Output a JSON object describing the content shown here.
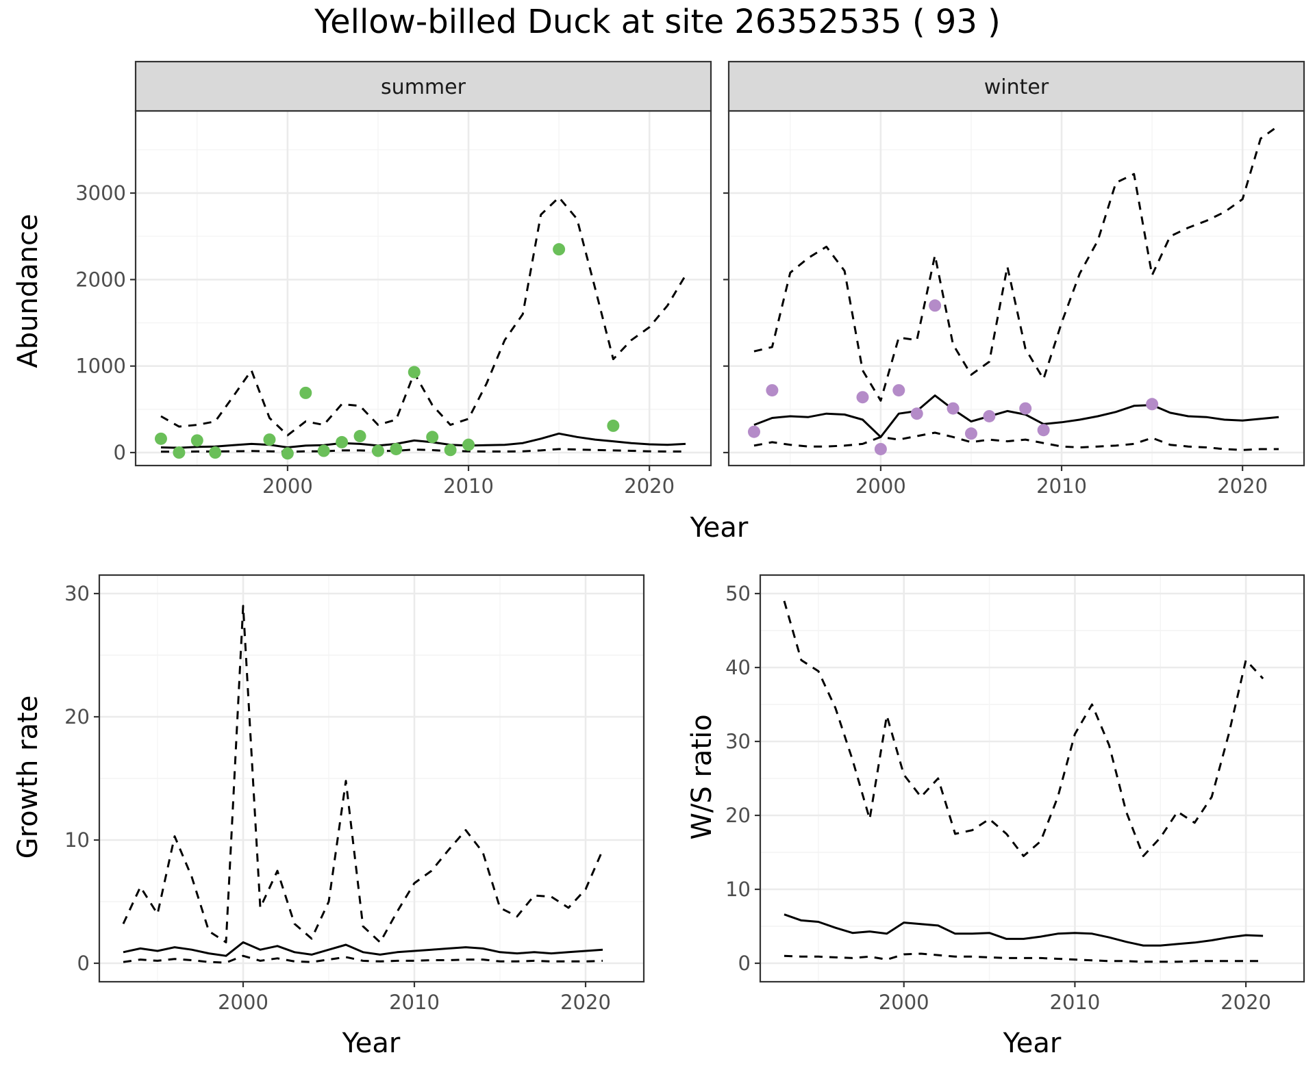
{
  "title": "Yellow-billed Duck at site 26352535 ( 93 )",
  "colors": {
    "summer_points": "#6abf59",
    "winter_points": "#b48bc8",
    "lines": "#000000",
    "strip_fill": "#d9d9d9",
    "grid_major": "#ebebeb",
    "grid_minor": "#f4f4f4"
  },
  "chart_data": [
    {
      "type": "line",
      "panel": "summer",
      "strip_label": "summer",
      "xlabel": "Year",
      "ylabel": "Abundance",
      "xlim": [
        1991.6,
        2023.4
      ],
      "ylim": [
        -150,
        3950
      ],
      "xticks": [
        2000,
        2010,
        2020
      ],
      "yticks": [
        0,
        1000,
        2000,
        3000
      ],
      "x": [
        1993,
        1994,
        1995,
        1996,
        1997,
        1998,
        1999,
        2000,
        2001,
        2002,
        2003,
        2004,
        2005,
        2006,
        2007,
        2008,
        2009,
        2010,
        2011,
        2012,
        2013,
        2014,
        2015,
        2016,
        2017,
        2018,
        2019,
        2020,
        2021,
        2022
      ],
      "series": [
        {
          "style": "solid",
          "values": [
            60,
            55,
            65,
            70,
            85,
            100,
            90,
            60,
            80,
            85,
            110,
            100,
            80,
            100,
            140,
            120,
            90,
            80,
            85,
            90,
            110,
            160,
            220,
            180,
            150,
            130,
            110,
            95,
            90,
            100
          ]
        },
        {
          "style": "dashed",
          "values": [
            420,
            300,
            320,
            360,
            650,
            950,
            400,
            200,
            360,
            320,
            560,
            540,
            320,
            380,
            920,
            550,
            320,
            390,
            800,
            1300,
            1600,
            2750,
            2950,
            2700,
            1900,
            1080,
            1300,
            1450,
            1700,
            2050
          ]
        },
        {
          "style": "dashed",
          "values": [
            10,
            10,
            12,
            12,
            15,
            18,
            15,
            8,
            15,
            15,
            25,
            25,
            18,
            20,
            35,
            28,
            18,
            15,
            12,
            12,
            15,
            25,
            40,
            35,
            30,
            25,
            20,
            15,
            12,
            12
          ]
        }
      ],
      "points": {
        "color": "#6abf59",
        "x": [
          1993,
          1994,
          1995,
          1996,
          1999,
          2000,
          2001,
          2002,
          2003,
          2004,
          2005,
          2006,
          2007,
          2008,
          2009,
          2010,
          2015,
          2018
        ],
        "y": [
          160,
          0,
          140,
          0,
          150,
          -10,
          690,
          20,
          120,
          190,
          20,
          40,
          930,
          180,
          30,
          90,
          2350,
          310
        ]
      }
    },
    {
      "type": "line",
      "panel": "winter",
      "strip_label": "winter",
      "xlabel": "Year",
      "ylabel": "",
      "xlim": [
        1991.6,
        2023.4
      ],
      "ylim": [
        -150,
        3950
      ],
      "xticks": [
        2000,
        2010,
        2020
      ],
      "yticks": [
        0,
        1000,
        2000,
        3000
      ],
      "x": [
        1993,
        1994,
        1995,
        1996,
        1997,
        1998,
        1999,
        2000,
        2001,
        2002,
        2003,
        2004,
        2005,
        2006,
        2007,
        2008,
        2009,
        2010,
        2011,
        2012,
        2013,
        2014,
        2015,
        2016,
        2017,
        2018,
        2019,
        2020,
        2021,
        2022
      ],
      "series": [
        {
          "style": "solid",
          "values": [
            320,
            400,
            420,
            410,
            450,
            440,
            380,
            180,
            450,
            480,
            660,
            500,
            360,
            420,
            480,
            440,
            330,
            350,
            380,
            420,
            470,
            540,
            550,
            460,
            420,
            410,
            380,
            370,
            390,
            410
          ]
        },
        {
          "style": "dashed",
          "values": [
            1170,
            1220,
            2080,
            2250,
            2380,
            2100,
            950,
            600,
            1330,
            1300,
            2280,
            1250,
            900,
            1050,
            2150,
            1200,
            850,
            1500,
            2070,
            2450,
            3120,
            3220,
            2050,
            2500,
            2600,
            2680,
            2780,
            2930,
            3630,
            3780
          ]
        },
        {
          "style": "dashed",
          "values": [
            80,
            120,
            90,
            70,
            70,
            80,
            100,
            180,
            150,
            190,
            230,
            180,
            120,
            150,
            130,
            150,
            110,
            70,
            60,
            70,
            80,
            100,
            170,
            90,
            70,
            60,
            40,
            30,
            40,
            40
          ]
        }
      ],
      "points": {
        "color": "#b48bc8",
        "x": [
          1993,
          1994,
          1999,
          2000,
          2001,
          2002,
          2003,
          2004,
          2005,
          2006,
          2008,
          2009,
          2015
        ],
        "y": [
          240,
          720,
          640,
          40,
          720,
          450,
          1700,
          510,
          220,
          420,
          510,
          260,
          560
        ]
      }
    },
    {
      "type": "line",
      "panel": "growth",
      "strip_label": "",
      "xlabel": "Year",
      "ylabel": "Growth rate",
      "xlim": [
        1991.6,
        2023.4
      ],
      "ylim": [
        -1.5,
        31.5
      ],
      "xticks": [
        2000,
        2010,
        2020
      ],
      "yticks": [
        0,
        10,
        20,
        30
      ],
      "x": [
        1993,
        1994,
        1995,
        1996,
        1997,
        1998,
        1999,
        2000,
        2001,
        2002,
        2003,
        2004,
        2005,
        2006,
        2007,
        2008,
        2009,
        2010,
        2011,
        2012,
        2013,
        2014,
        2015,
        2016,
        2017,
        2018,
        2019,
        2020,
        2021
      ],
      "series": [
        {
          "style": "solid",
          "values": [
            0.9,
            1.2,
            1.0,
            1.3,
            1.1,
            0.8,
            0.6,
            1.7,
            1.1,
            1.4,
            0.9,
            0.7,
            1.1,
            1.5,
            0.9,
            0.7,
            0.9,
            1.0,
            1.1,
            1.2,
            1.3,
            1.2,
            0.9,
            0.8,
            0.9,
            0.8,
            0.9,
            1.0,
            1.1
          ]
        },
        {
          "style": "dashed",
          "values": [
            3.2,
            6.2,
            4.0,
            10.3,
            7.0,
            2.6,
            1.7,
            29.0,
            4.5,
            7.5,
            3.2,
            2.0,
            5.0,
            14.8,
            3.0,
            1.7,
            4.2,
            6.5,
            7.5,
            9.2,
            10.8,
            9.0,
            4.5,
            3.8,
            5.5,
            5.4,
            4.5,
            6.0,
            9.2
          ]
        },
        {
          "style": "dashed",
          "values": [
            0.1,
            0.3,
            0.2,
            0.35,
            0.25,
            0.1,
            0.05,
            0.6,
            0.2,
            0.4,
            0.15,
            0.1,
            0.3,
            0.5,
            0.2,
            0.15,
            0.2,
            0.2,
            0.25,
            0.25,
            0.3,
            0.3,
            0.15,
            0.15,
            0.2,
            0.15,
            0.15,
            0.15,
            0.2
          ]
        }
      ]
    },
    {
      "type": "line",
      "panel": "ratio",
      "strip_label": "",
      "xlabel": "Year",
      "ylabel": "W/S ratio",
      "xlim": [
        1991.6,
        2023.4
      ],
      "ylim": [
        -2.5,
        52.5
      ],
      "xticks": [
        2000,
        2010,
        2020
      ],
      "yticks": [
        0,
        10,
        20,
        30,
        40,
        50
      ],
      "x": [
        1993,
        1994,
        1995,
        1996,
        1997,
        1998,
        1999,
        2000,
        2001,
        2002,
        2003,
        2004,
        2005,
        2006,
        2007,
        2008,
        2009,
        2010,
        2011,
        2012,
        2013,
        2014,
        2015,
        2016,
        2017,
        2018,
        2019,
        2020,
        2021
      ],
      "series": [
        {
          "style": "solid",
          "values": [
            6.6,
            5.8,
            5.6,
            4.8,
            4.1,
            4.3,
            4.0,
            5.5,
            5.3,
            5.1,
            4.0,
            4.0,
            4.1,
            3.3,
            3.3,
            3.6,
            4.0,
            4.1,
            4.0,
            3.5,
            2.9,
            2.4,
            2.4,
            2.6,
            2.8,
            3.1,
            3.5,
            3.8,
            3.7
          ]
        },
        {
          "style": "dashed",
          "values": [
            49.0,
            41.0,
            39.5,
            34.5,
            27.5,
            19.5,
            33.5,
            25.5,
            22.5,
            25.0,
            17.5,
            18.0,
            19.5,
            17.5,
            14.5,
            16.5,
            22.5,
            31.0,
            35.0,
            29.5,
            20.5,
            14.5,
            17.0,
            20.5,
            19.0,
            22.5,
            31.0,
            41.0,
            38.5
          ]
        },
        {
          "style": "dashed",
          "values": [
            1.0,
            0.9,
            0.9,
            0.8,
            0.7,
            0.9,
            0.5,
            1.2,
            1.3,
            1.1,
            0.9,
            0.9,
            0.8,
            0.7,
            0.7,
            0.7,
            0.6,
            0.5,
            0.4,
            0.3,
            0.3,
            0.2,
            0.2,
            0.2,
            0.3,
            0.3,
            0.3,
            0.3,
            0.3
          ]
        }
      ]
    }
  ]
}
